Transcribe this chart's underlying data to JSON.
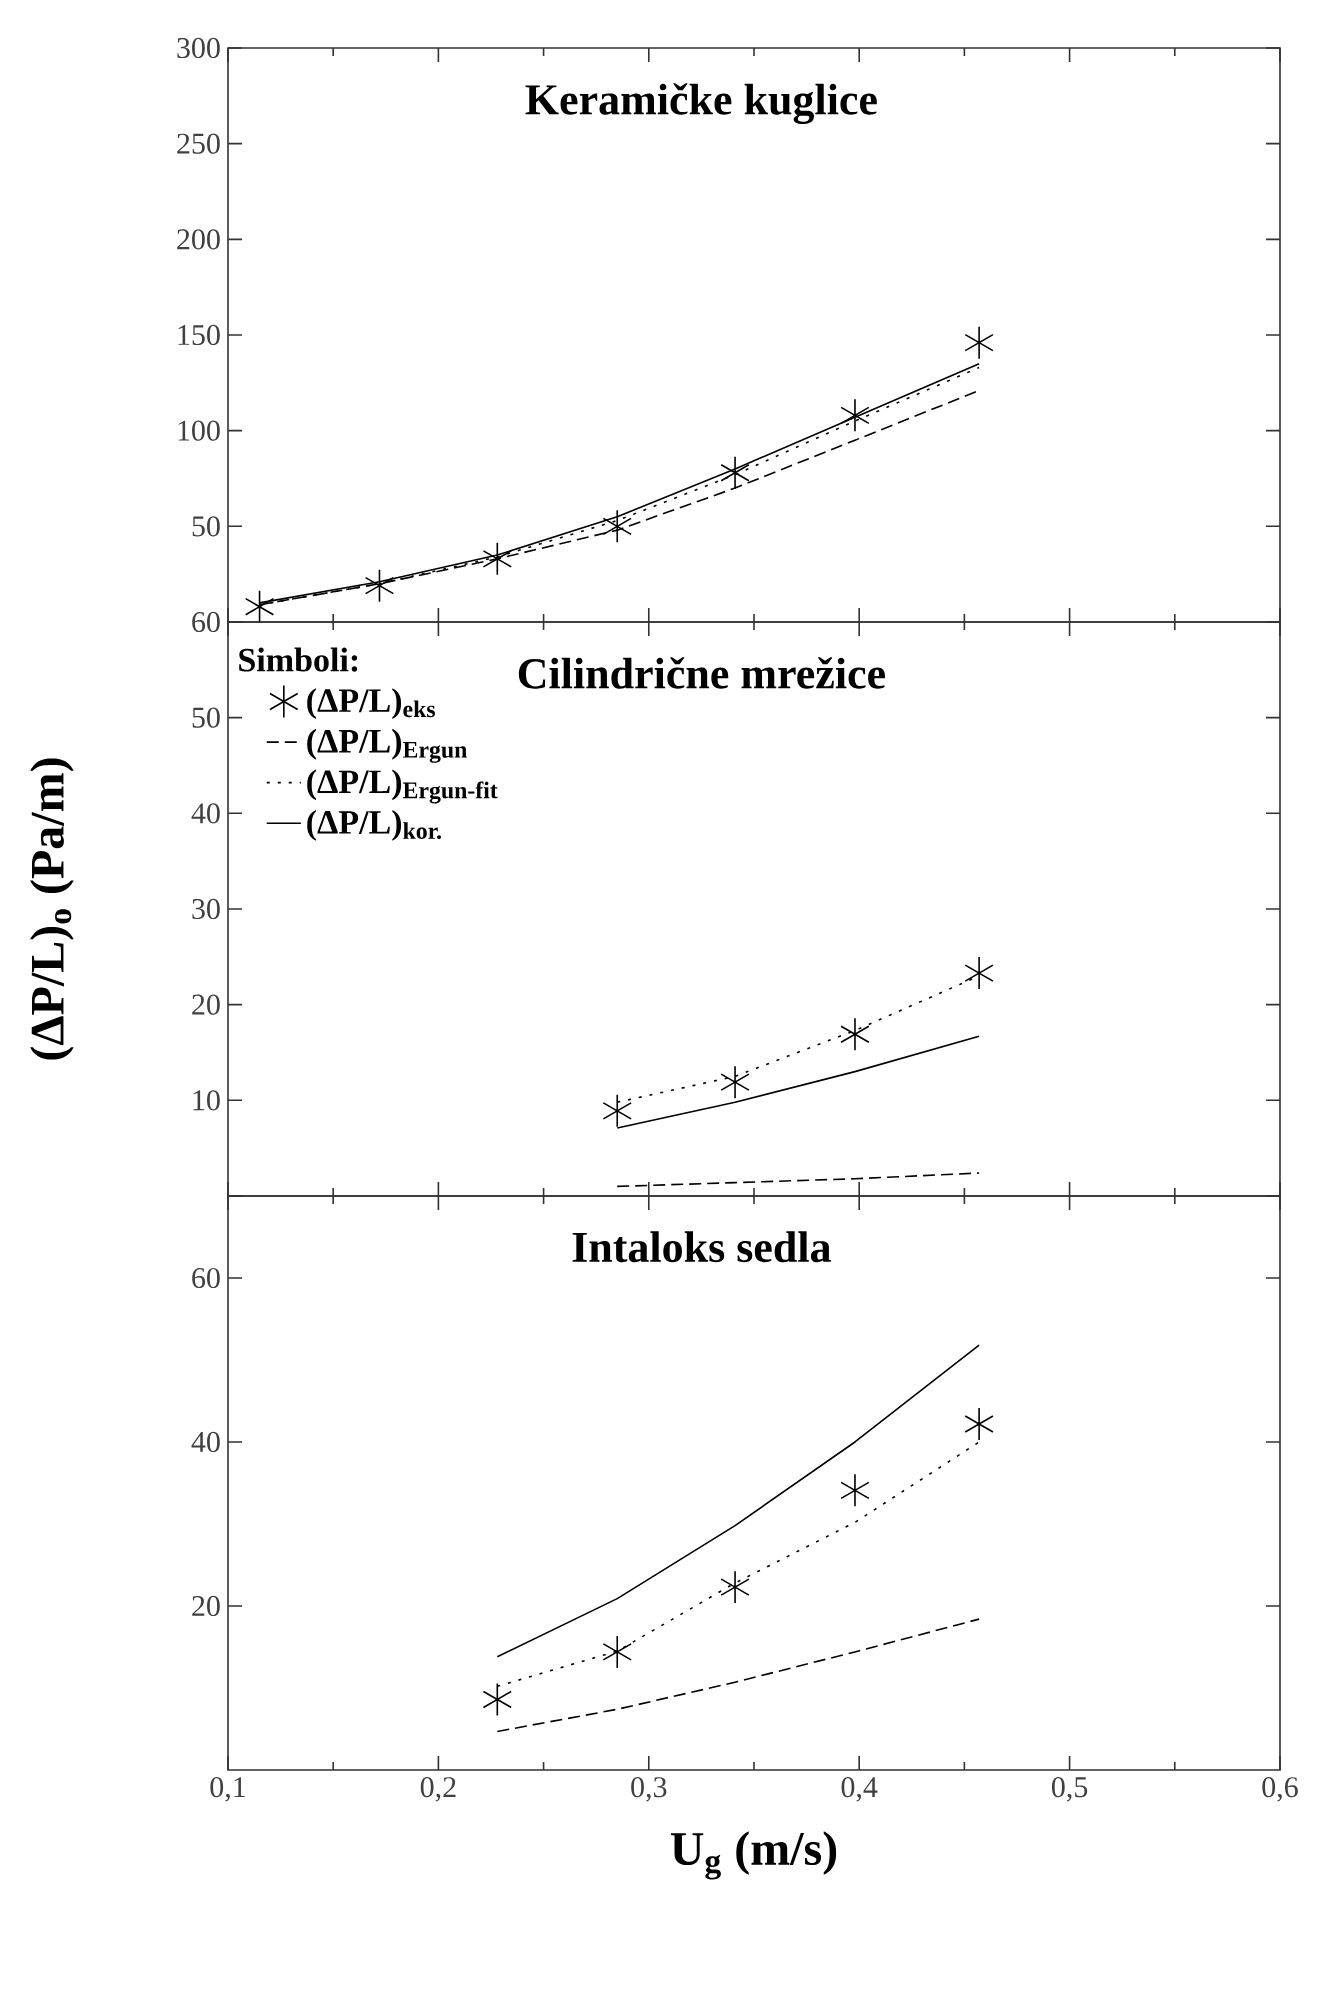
{
  "chart_data": [
    {
      "type": "line",
      "title": "Keramičke kuglice",
      "tick_labels": "y",
      "marker": "none",
      "legend": false,
      "x": [
        0.115,
        0.172,
        0.228,
        0.285,
        0.341,
        0.398,
        0.457
      ],
      "xlim": [
        0.1,
        0.6
      ],
      "ylim": [
        0,
        300
      ],
      "xticks": [
        0.1,
        0.2,
        0.3,
        0.4,
        0.5,
        0.6
      ],
      "yticks": [
        {
          "value": 0,
          "label": null
        },
        50,
        100,
        150,
        200,
        250,
        300
      ],
      "series": [
        {
          "type": "scatter",
          "marker": "cross",
          "color": "#000000",
          "values": [
            8,
            19,
            33,
            50,
            78,
            108,
            146
          ]
        },
        {
          "line_style": "dashed",
          "color": "#000000",
          "values": [
            9,
            20,
            33,
            48,
            70,
            95,
            121
          ]
        },
        {
          "line_style": "dotted",
          "color": "#000000",
          "values": [
            9,
            20,
            34,
            53,
            77,
            105,
            133
          ]
        },
        {
          "line_style": "solid",
          "color": "#000000",
          "values": [
            10,
            21,
            35,
            55,
            80,
            107,
            135
          ]
        }
      ]
    },
    {
      "type": "line",
      "title": "Cilindrične mrežice",
      "ylabel": "(ΔP/L)$_{o}$ (Pa/m)",
      "tick_labels": "y",
      "marker": "none",
      "legend": "top left",
      "legend_title": "Simboli:",
      "x": [
        0.285,
        0.341,
        0.398,
        0.457
      ],
      "xlim": [
        0.1,
        0.6
      ],
      "ylim": [
        0,
        60
      ],
      "xticks": [
        0.1,
        0.2,
        0.3,
        0.4,
        0.5,
        0.6
      ],
      "yticks": [
        {
          "value": 0,
          "label": null
        },
        10,
        20,
        30,
        40,
        50,
        60
      ],
      "series": [
        {
          "type": "scatter",
          "marker": "cross",
          "name": "(ΔP/L)$_{eks}$",
          "color": "#000000",
          "values": [
            8.9,
            11.9,
            16.9,
            23.3
          ]
        },
        {
          "line_style": "dashed",
          "name": "(ΔP/L)$_{Ergun}$",
          "color": "#000000",
          "values": [
            1.0,
            1.4,
            1.8,
            2.4
          ]
        },
        {
          "line_style": "dotted",
          "name": "(ΔP/L)$_{Ergun-fit}$",
          "color": "#000000",
          "values": [
            9.8,
            12.5,
            17.3,
            23.0
          ]
        },
        {
          "line_style": "solid",
          "name": "(ΔP/L)$_{kor.}$",
          "color": "#000000",
          "values": [
            7.1,
            9.8,
            13.0,
            16.7
          ]
        }
      ]
    },
    {
      "type": "line",
      "title": "Intaloks sedla",
      "xlabel": "U$_{g}$ (m/s)",
      "marker": "none",
      "legend": false,
      "x": [
        0.228,
        0.285,
        0.341,
        0.398,
        0.457
      ],
      "xlim": [
        0.1,
        0.6
      ],
      "ylim": [
        0,
        70
      ],
      "xticks": [
        {
          "value": 0.1,
          "label": "0,1"
        },
        {
          "value": 0.2,
          "label": "0,2"
        },
        {
          "value": 0.3,
          "label": "0,3"
        },
        {
          "value": 0.4,
          "label": "0,4"
        },
        {
          "value": 0.5,
          "label": "0,5"
        },
        {
          "value": 0.6,
          "label": "0,6"
        }
      ],
      "yticks": [
        20,
        40,
        60
      ],
      "series": [
        {
          "type": "scatter",
          "marker": "cross",
          "color": "#000000",
          "values": [
            8.6,
            14.4,
            22.3,
            34.1,
            42.2
          ]
        },
        {
          "line_style": "dashed",
          "color": "#000000",
          "values": [
            4.7,
            7.4,
            10.7,
            14.4,
            18.4
          ]
        },
        {
          "line_style": "dotted",
          "color": "#000000",
          "values": [
            10.2,
            14.5,
            22.8,
            30.2,
            40.0
          ]
        },
        {
          "line_style": "solid",
          "color": "#000000",
          "values": [
            13.8,
            20.9,
            29.8,
            40.0,
            51.8
          ]
        }
      ]
    }
  ]
}
